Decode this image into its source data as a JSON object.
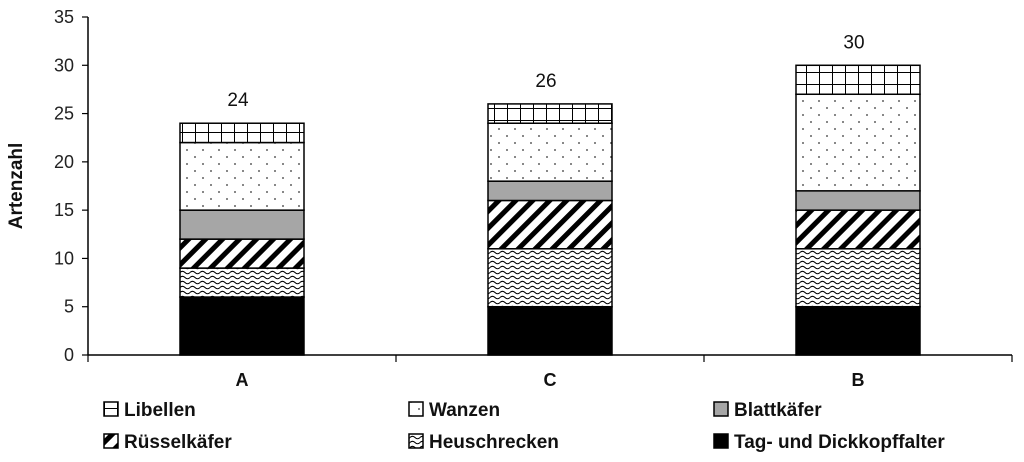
{
  "chart_data": {
    "type": "bar",
    "stacked": true,
    "ylabel": "Artenzahl",
    "xlabel": "",
    "ylim": [
      0,
      35
    ],
    "yticks": [
      0,
      5,
      10,
      15,
      20,
      25,
      30,
      35
    ],
    "categories": [
      "A",
      "C",
      "B"
    ],
    "totals": [
      24,
      26,
      30
    ],
    "series": [
      {
        "name": "Tag- und Dickkopffalter",
        "pattern": "solid-black",
        "values": [
          6,
          5,
          5
        ]
      },
      {
        "name": "Heuschrecken",
        "pattern": "wavy",
        "values": [
          3,
          6,
          6
        ]
      },
      {
        "name": "Rüsselkäfer",
        "pattern": "diagonal-stripes",
        "values": [
          3,
          5,
          4
        ]
      },
      {
        "name": "Blattkäfer",
        "pattern": "solid-gray",
        "values": [
          3,
          2,
          2
        ]
      },
      {
        "name": "Wanzen",
        "pattern": "dots",
        "values": [
          7,
          6,
          10
        ]
      },
      {
        "name": "Libellen",
        "pattern": "grid",
        "values": [
          2,
          2,
          3
        ]
      }
    ],
    "legend_order": [
      "Libellen",
      "Wanzen",
      "Blattkäfer",
      "Rüsselkäfer",
      "Heuschrecken",
      "Tag- und Dickkopffalter"
    ],
    "legend_position": "bottom",
    "grid": false,
    "colors": {
      "black": "#000000",
      "gray": "#a6a6a6",
      "white": "#ffffff"
    }
  }
}
